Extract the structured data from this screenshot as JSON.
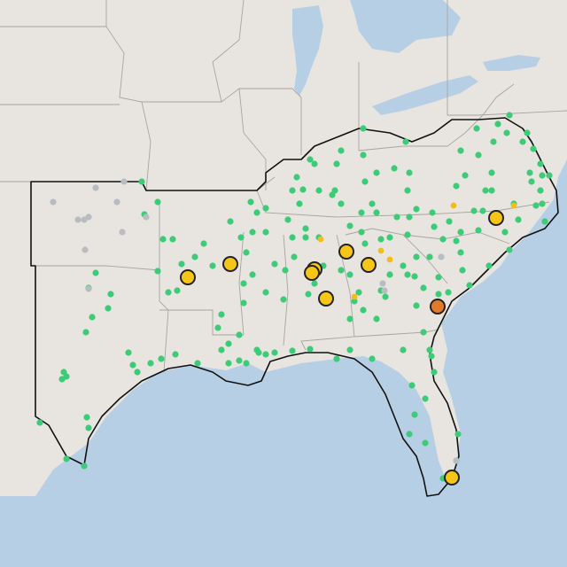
{
  "map": {
    "colors": {
      "land": "#e8e5e1",
      "water": "#b7cfe4",
      "state_border": "#a8a4a0",
      "region_outline": "#111111",
      "marker_green": "#3ecb78",
      "marker_gray": "#b9bcc0",
      "marker_yellow_small": "#f2bd1b",
      "marker_yellow_large": "#f5c518",
      "marker_orange": "#e37a2a",
      "marker_stroke": "#222222"
    },
    "marker_categories": [
      {
        "id": "green-small",
        "color": "#3ecb78",
        "size": "small"
      },
      {
        "id": "gray-small",
        "color": "#b9bcc0",
        "size": "small"
      },
      {
        "id": "yellow-small",
        "color": "#f2bd1b",
        "size": "small"
      },
      {
        "id": "yellow-large",
        "color": "#f5c518",
        "size": "large",
        "outlined": true
      },
      {
        "id": "orange-large",
        "color": "#e37a2a",
        "size": "large",
        "outlined": true
      }
    ]
  }
}
